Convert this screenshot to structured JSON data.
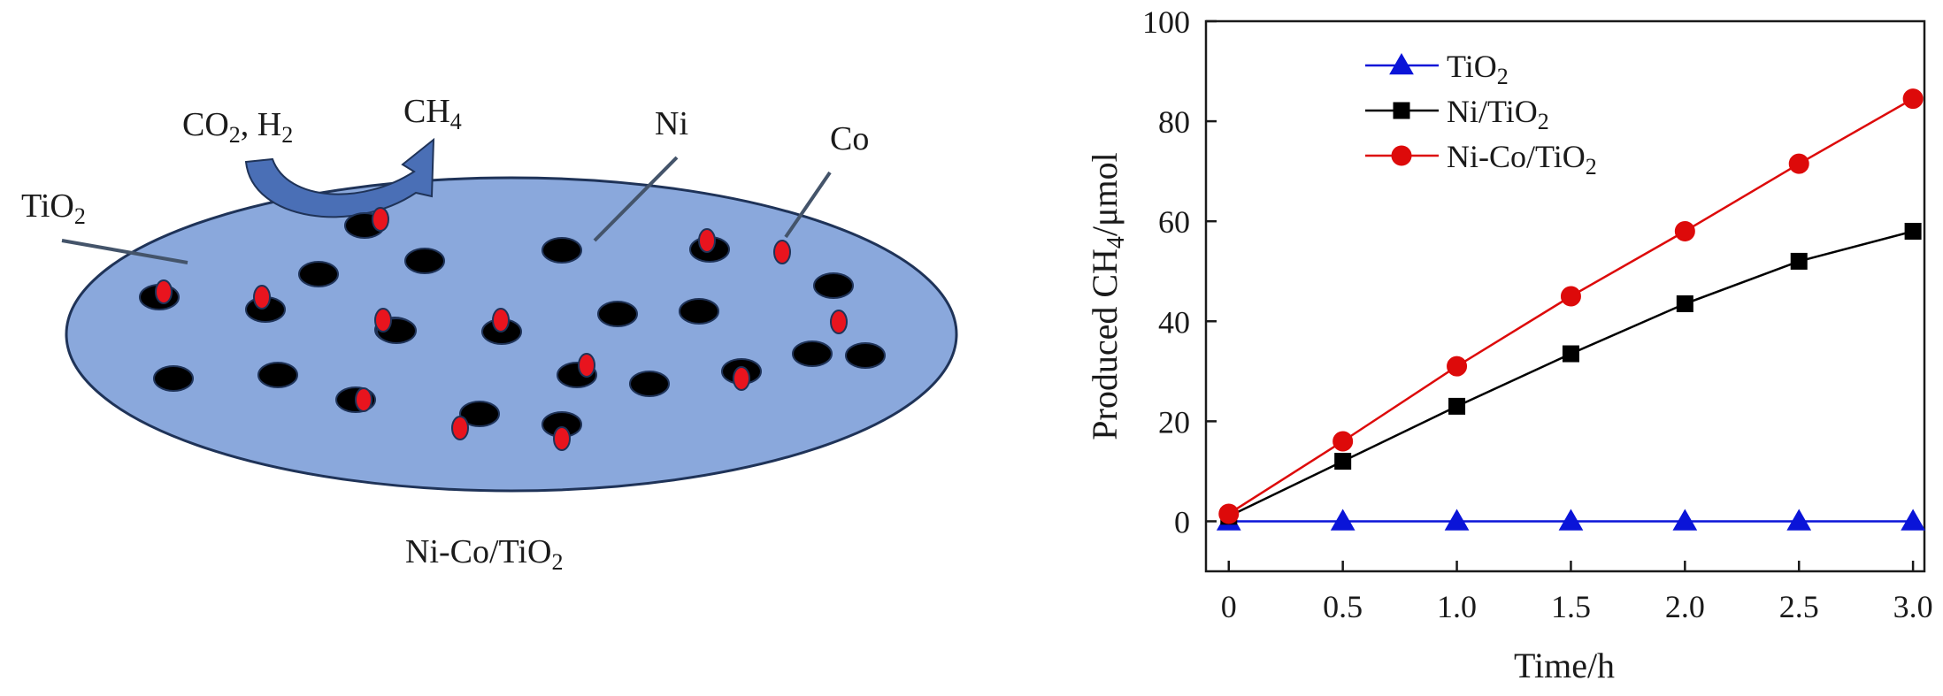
{
  "schematic": {
    "reactant_label": "CO",
    "reactant_sub": "2",
    "reactant_suffix": ", H",
    "reactant_sub2": "2",
    "product_label": "CH",
    "product_sub": "4",
    "support_label": "TiO",
    "support_sub": "2",
    "ni_label": "Ni",
    "co_label": "Co",
    "caption_main": "Ni-Co/TiO",
    "caption_sub": "2",
    "colors": {
      "support_fill": "#8aa8dc",
      "support_stroke": "#1f3358",
      "arrow_fill": "#4a6fb6",
      "ni_particle": "#000000",
      "co_particle": "#e8141e"
    }
  },
  "chart_data": {
    "type": "line",
    "xlabel": "Time/h",
    "ylabel_main": "Produced CH",
    "ylabel_sub": "4",
    "ylabel_suffix": "/μmol",
    "xlim": [
      -0.1,
      3.05
    ],
    "ylim": [
      -10,
      100
    ],
    "xticks": [
      0,
      0.5,
      1.0,
      1.5,
      2.0,
      2.5,
      3.0
    ],
    "xtick_labels": [
      "0",
      "0.5",
      "1.0",
      "1.5",
      "2.0",
      "2.5",
      "3.0"
    ],
    "yticks": [
      0,
      20,
      40,
      60,
      80,
      100
    ],
    "ytick_labels": [
      "0",
      "20",
      "40",
      "60",
      "80",
      "100"
    ],
    "grid": false,
    "legend_position": "top-left",
    "series": [
      {
        "name_main": "TiO",
        "name_sub": "2",
        "name_suffix": "",
        "color": "#0a14d8",
        "marker": "triangle",
        "x": [
          0,
          0.5,
          1.0,
          1.5,
          2.0,
          2.5,
          3.0
        ],
        "y": [
          0,
          0,
          0,
          0,
          0,
          0,
          0
        ]
      },
      {
        "name_main": "Ni/TiO",
        "name_sub": "2",
        "name_suffix": "",
        "color": "#000000",
        "marker": "square",
        "x": [
          0,
          0.5,
          1.0,
          1.5,
          2.0,
          2.5,
          3.0
        ],
        "y": [
          1,
          12,
          23,
          33.5,
          43.5,
          52,
          58
        ]
      },
      {
        "name_main": "Ni-Co/TiO",
        "name_sub": "2",
        "name_suffix": "",
        "color": "#dd0a0a",
        "marker": "circle",
        "x": [
          0,
          0.5,
          1.0,
          1.5,
          2.0,
          2.5,
          3.0
        ],
        "y": [
          1.5,
          16,
          31,
          45,
          58,
          71.5,
          84.5
        ]
      }
    ]
  }
}
